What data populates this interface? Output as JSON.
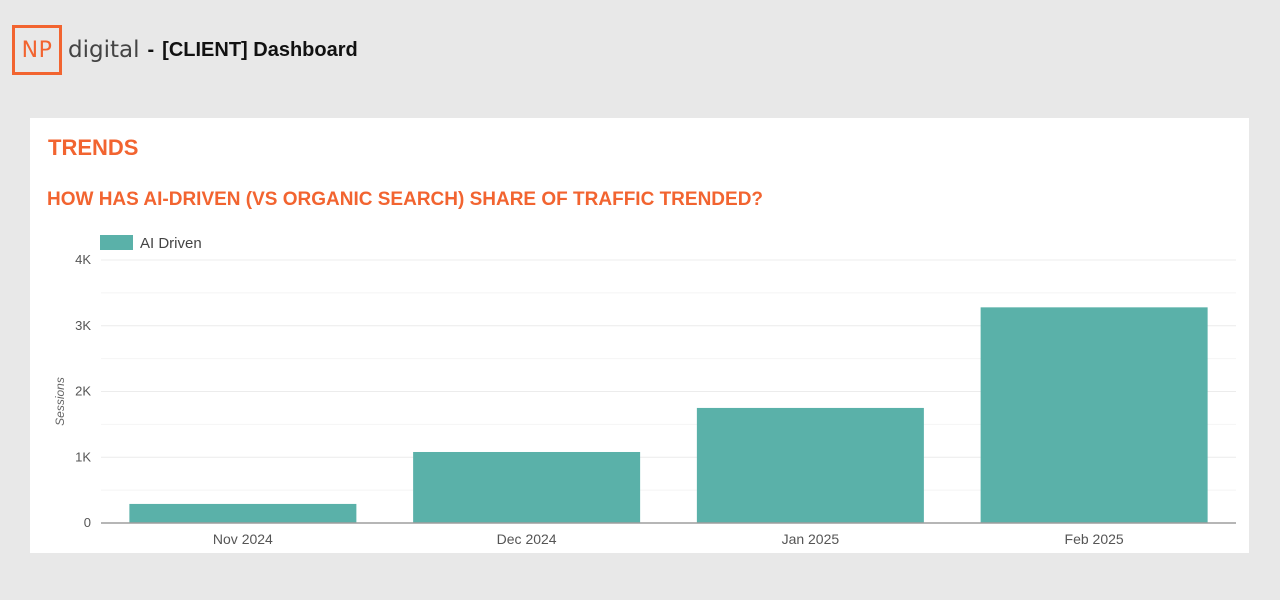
{
  "header": {
    "logo_mark": "NP",
    "logo_word": "digital",
    "separator": "-",
    "title": "[CLIENT] Dashboard"
  },
  "section": {
    "title": "TRENDS"
  },
  "colors": {
    "accent": "#f26430",
    "bar": "#5ab1a9",
    "grid": "#ececec",
    "axis": "#9e9e9e"
  },
  "chart_data": {
    "type": "bar",
    "title": "HOW HAS AI-DRIVEN (VS ORGANIC SEARCH) SHARE OF TRAFFIC TRENDED?",
    "categories": [
      "Nov 2024",
      "Dec 2024",
      "Jan 2025",
      "Feb 2025"
    ],
    "series": [
      {
        "name": "AI Driven",
        "values": [
          290,
          1080,
          1750,
          3280
        ]
      }
    ],
    "xlabel": "",
    "ylabel": "Sessions",
    "ylim": [
      0,
      4000
    ],
    "yticks": [
      {
        "value": 0,
        "label": "0"
      },
      {
        "value": 1000,
        "label": "1K"
      },
      {
        "value": 2000,
        "label": "2K"
      },
      {
        "value": 3000,
        "label": "3K"
      },
      {
        "value": 4000,
        "label": "4K"
      }
    ],
    "grid": true,
    "legend": "top-left"
  }
}
